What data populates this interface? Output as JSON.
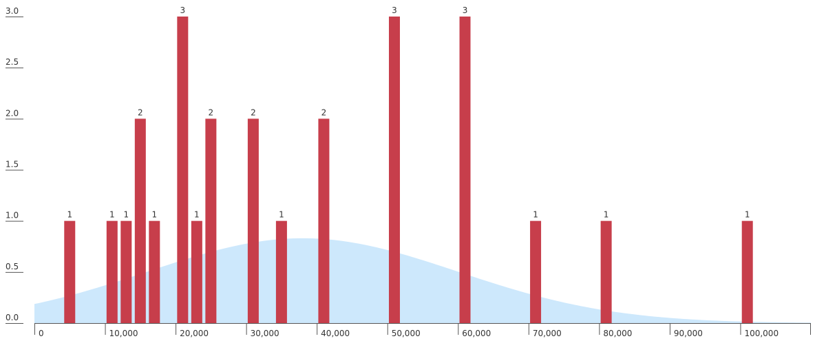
{
  "chart_data": {
    "type": "bar",
    "title": "",
    "xlabel": "",
    "ylabel": "",
    "xlim": [
      0,
      110000
    ],
    "ylim": [
      0,
      3
    ],
    "x_ticks": [
      0,
      10000,
      20000,
      30000,
      40000,
      50000,
      60000,
      70000,
      80000,
      90000,
      100000
    ],
    "x_tick_labels": [
      "0",
      "10,000",
      "20,000",
      "30,000",
      "40,000",
      "50,000",
      "60,000",
      "70,000",
      "80,000",
      "90,000",
      "100,000"
    ],
    "y_ticks": [
      0,
      0.5,
      1,
      1.5,
      2,
      2.5,
      3
    ],
    "y_tick_labels": [
      "0.0",
      "0.5",
      "1.0",
      "1.5",
      "2.0",
      "2.5",
      "3.0"
    ],
    "grid": false,
    "bars": [
      {
        "x": 5000,
        "value": 1,
        "label": "1"
      },
      {
        "x": 11000,
        "value": 1,
        "label": "1"
      },
      {
        "x": 13000,
        "value": 1,
        "label": "1"
      },
      {
        "x": 15000,
        "value": 2,
        "label": "2"
      },
      {
        "x": 17000,
        "value": 1,
        "label": "1"
      },
      {
        "x": 21000,
        "value": 3,
        "label": "3"
      },
      {
        "x": 23000,
        "value": 1,
        "label": "1"
      },
      {
        "x": 25000,
        "value": 2,
        "label": "2"
      },
      {
        "x": 31000,
        "value": 2,
        "label": "2"
      },
      {
        "x": 35000,
        "value": 1,
        "label": "1"
      },
      {
        "x": 41000,
        "value": 2,
        "label": "2"
      },
      {
        "x": 51000,
        "value": 3,
        "label": "3"
      },
      {
        "x": 61000,
        "value": 3,
        "label": "3"
      },
      {
        "x": 71000,
        "value": 1,
        "label": "1"
      },
      {
        "x": 81000,
        "value": 1,
        "label": "1"
      },
      {
        "x": 101000,
        "value": 1,
        "label": "1"
      }
    ],
    "density_curve": {
      "type": "area",
      "mean": 38000,
      "sd": 22000,
      "peak": 0.83,
      "x_start": 0,
      "x_end": 110000
    },
    "colors": {
      "bar": "#c73e4b",
      "area": "#cde8fc",
      "axis": "#555555",
      "text": "#333333"
    }
  }
}
